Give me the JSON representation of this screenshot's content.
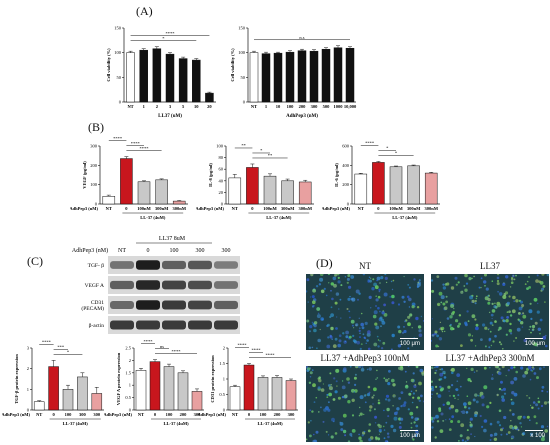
{
  "panel_labels": {
    "a": "(A)",
    "b": "(B)",
    "c": "(C)",
    "d": "(D)"
  },
  "colors": {
    "red": "#c8161d",
    "gray": "#c8c8c8",
    "black": "#111111",
    "pink": "#e8a0a0",
    "white": "#ffffff"
  },
  "chart_data": [
    {
      "id": "a1",
      "type": "bar",
      "categories": [
        "NT",
        "1",
        "2",
        "3",
        "5",
        "10",
        "20"
      ],
      "values": [
        100,
        105,
        108,
        97,
        88,
        85,
        18
      ],
      "errors": [
        3,
        3,
        4,
        3,
        3,
        3,
        2
      ],
      "colors": [
        "white",
        "black",
        "black",
        "black",
        "black",
        "black",
        "black"
      ],
      "ylabel": "Cell viability (%)",
      "xlabel": "LL37 (uM)",
      "ylim": [
        0,
        150
      ],
      "yticks": [
        0,
        50,
        100,
        150
      ],
      "annotations": [
        {
          "text": "****",
          "from": 0,
          "to": 6
        },
        {
          "text": "*",
          "from": 0,
          "to": 5
        }
      ]
    },
    {
      "id": "a2",
      "type": "bar",
      "categories": [
        "NT",
        "1",
        "10",
        "100",
        "200",
        "300",
        "500",
        "1000",
        "10,000"
      ],
      "values": [
        100,
        98,
        99,
        101,
        104,
        103,
        107,
        110,
        109
      ],
      "errors": [
        3,
        3,
        2,
        3,
        3,
        3,
        3,
        4,
        3
      ],
      "colors": [
        "white",
        "black",
        "black",
        "black",
        "black",
        "black",
        "black",
        "black",
        "black"
      ],
      "ylabel": "Cell viability (%)",
      "xlabel": "AdhPep3 (nM)",
      "ylim": [
        0,
        150
      ],
      "yticks": [
        0,
        50,
        100,
        150
      ],
      "annotations": [
        {
          "text": "n.s",
          "from": 0,
          "to": 8
        }
      ]
    },
    {
      "id": "b1",
      "type": "bar",
      "categories": [
        "NT",
        "0",
        "100nM",
        "300nM",
        "300nM"
      ],
      "values": [
        40,
        235,
        115,
        125,
        15
      ],
      "errors": [
        6,
        10,
        5,
        5,
        3
      ],
      "colors": [
        "white",
        "red",
        "gray",
        "gray",
        "pink"
      ],
      "ylabel": "VEGF (pg/ml)",
      "xlabel": "LL-37 (4uM)",
      "row_label": "AdhPep3 (nM)",
      "ylim": [
        0,
        300
      ],
      "yticks": [
        0,
        100,
        200,
        300
      ],
      "annotations": [
        {
          "text": "****",
          "from": 0,
          "to": 1
        },
        {
          "text": "****",
          "from": 1,
          "to": 2
        },
        {
          "text": "****",
          "from": 1,
          "to": 3
        }
      ]
    },
    {
      "id": "b2",
      "type": "bar",
      "categories": [
        "NT",
        "0",
        "100nM",
        "300nM",
        "300nM"
      ],
      "values": [
        45,
        63,
        48,
        40,
        38
      ],
      "errors": [
        6,
        6,
        4,
        3,
        3
      ],
      "colors": [
        "white",
        "red",
        "gray",
        "gray",
        "pink"
      ],
      "ylabel": "IL-8 (pg/ml)",
      "xlabel": "LL-37 (4uM)",
      "row_label": "AdhPep3 (nM)",
      "ylim": [
        0,
        100
      ],
      "yticks": [
        0,
        20,
        40,
        60,
        80,
        100
      ],
      "annotations": [
        {
          "text": "**",
          "from": 0,
          "to": 1
        },
        {
          "text": "*",
          "from": 1,
          "to": 2
        },
        {
          "text": "**",
          "from": 1,
          "to": 3
        }
      ]
    },
    {
      "id": "b3",
      "type": "bar",
      "categories": [
        "NT",
        "0",
        "100nM",
        "300nM",
        "300nM"
      ],
      "values": [
        310,
        430,
        385,
        395,
        320
      ],
      "errors": [
        8,
        10,
        8,
        8,
        8
      ],
      "colors": [
        "white",
        "red",
        "gray",
        "gray",
        "pink"
      ],
      "ylabel": "IL-6 (pg/ml)",
      "xlabel": "LL-37 (4uM)",
      "row_label": "AdhPep3 (nM)",
      "ylim": [
        0,
        600
      ],
      "yticks": [
        0,
        200,
        400,
        600
      ],
      "annotations": [
        {
          "text": "****",
          "from": 0,
          "to": 1
        },
        {
          "text": "*",
          "from": 1,
          "to": 2
        },
        {
          "text": "*",
          "from": 1,
          "to": 3
        }
      ]
    },
    {
      "id": "c1",
      "type": "bar",
      "categories": [
        "NT",
        "0",
        "100",
        "300",
        "300"
      ],
      "values": [
        0.4,
        2.1,
        1.0,
        1.6,
        0.8
      ],
      "errors": [
        0.05,
        0.3,
        0.2,
        0.2,
        0.3
      ],
      "colors": [
        "white",
        "red",
        "gray",
        "gray",
        "pink"
      ],
      "ylabel": "TGF-β protein expression",
      "xlabel": "LL-37 (4uM)",
      "row_label": "AdhPep3 (nM)",
      "ylim": [
        0,
        3
      ],
      "yticks": [
        0,
        1,
        2,
        3
      ],
      "annotations": [
        {
          "text": "****",
          "from": 0,
          "to": 1
        },
        {
          "text": "***",
          "from": 1,
          "to": 2
        },
        {
          "text": "*",
          "from": 1,
          "to": 3
        }
      ]
    },
    {
      "id": "c2",
      "type": "bar",
      "categories": [
        "NT",
        "0",
        "100",
        "200",
        "300"
      ],
      "values": [
        1.6,
        1.95,
        1.75,
        1.5,
        0.75
      ],
      "errors": [
        0.08,
        0.08,
        0.1,
        0.08,
        0.1
      ],
      "colors": [
        "white",
        "red",
        "gray",
        "gray",
        "pink"
      ],
      "ylabel": "VEGF A protein expression",
      "xlabel": "LL-37 (4uM)",
      "row_label": "AdhPep3 (nM)",
      "ylim": [
        0,
        2.5
      ],
      "yticks": [
        0,
        0.5,
        1,
        1.5,
        2,
        2.5
      ],
      "annotations": [
        {
          "text": "****",
          "from": 0,
          "to": 1
        },
        {
          "text": "ns",
          "from": 1,
          "to": 2
        },
        {
          "text": "****",
          "from": 1,
          "to": 4
        }
      ]
    },
    {
      "id": "c3",
      "type": "bar",
      "categories": [
        "NT",
        "0",
        "100",
        "200",
        "300"
      ],
      "values": [
        0.75,
        1.45,
        1.05,
        1.05,
        0.95
      ],
      "errors": [
        0.05,
        0.05,
        0.05,
        0.06,
        0.05
      ],
      "colors": [
        "white",
        "red",
        "gray",
        "gray",
        "pink"
      ],
      "ylabel": "CD31 protein expression",
      "xlabel": "LL-37 (4uM)",
      "row_label": "AdhPep3 (nM)",
      "ylim": [
        0,
        2
      ],
      "yticks": [
        0,
        0.5,
        1,
        1.5,
        2
      ],
      "annotations": [
        {
          "text": "****",
          "from": 0,
          "to": 1
        },
        {
          "text": "****",
          "from": 1,
          "to": 2
        },
        {
          "text": "****",
          "from": 1,
          "to": 4
        }
      ]
    }
  ],
  "blot": {
    "header_group": "LL37 8uM",
    "header_row_label": "AdhPep3 (nM)",
    "lane_labels": [
      "NT",
      "0",
      "100",
      "300",
      "300"
    ],
    "bands": [
      {
        "label": "TGF- β",
        "intensity": [
          0.45,
          0.9,
          0.55,
          0.6,
          0.4
        ]
      },
      {
        "label": "VEGF A",
        "intensity": [
          0.55,
          0.85,
          0.7,
          0.65,
          0.45
        ]
      },
      {
        "label": "CD31\n(PECAM)",
        "intensity": [
          0.5,
          0.9,
          0.75,
          0.7,
          0.55
        ]
      },
      {
        "label": "β-actin",
        "intensity": [
          0.75,
          0.75,
          0.75,
          0.75,
          0.75
        ]
      }
    ]
  },
  "micrographs": [
    {
      "title": "NT",
      "scale": "100 μm",
      "green": 0.25
    },
    {
      "title": "LL37",
      "scale": "100 μm",
      "green": 0.7
    },
    {
      "title": "LL37 +AdhPep3  100nM",
      "scale": "100 μm",
      "green": 0.5
    },
    {
      "title": "LL37 +AdhPep3  300nM",
      "scale": "x 100",
      "green": 0.45
    }
  ]
}
